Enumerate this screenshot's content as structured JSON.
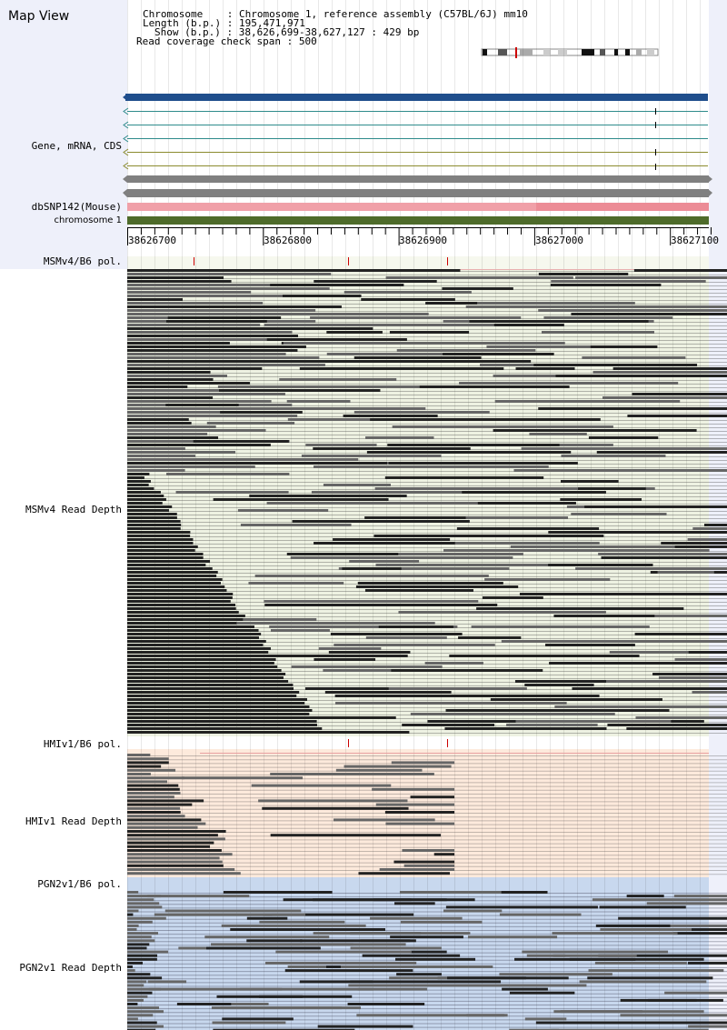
{
  "app": {
    "title": "Map View"
  },
  "info": {
    "chromosome_key": "Chromosome",
    "chromosome_value": "Chromosome 1, reference assembly (C57BL/6J) mm10",
    "length_key": "Length (b.p.)",
    "length_value": "195,471,971",
    "show_key": "Show (b.p.)",
    "show_value": "38,626,699-38,627,127 : 429 bp",
    "read_coverage_key": "Read coverage check span",
    "read_coverage_value": "500"
  },
  "tracks": {
    "gene": "Gene, mRNA, CDS",
    "dbsnp": "dbSNP142(Mouse)",
    "chromosome": "chromosome 1",
    "msm_pol": "MSMv4/B6 pol.",
    "msm_depth": "MSMv4 Read Depth",
    "hmi_pol": "HMIv1/B6 pol.",
    "hmi_depth": "HMIv1 Read Depth",
    "pgn_pol": "PGN2v1/B6 pol.",
    "pgn_depth": "PGN2v1 Read Depth"
  },
  "ruler": {
    "ticks": [
      "38626700",
      "38626800",
      "38626900",
      "38627000",
      "38627100"
    ]
  },
  "colors": {
    "gene_bar": "#1f4e8c",
    "transcript": "#2e8b8b",
    "transcript_olive": "#8b8b2e",
    "cds_gray": "#808080",
    "dbsnp": "#f0a0a8",
    "chromosome_bar": "#4e6b2a",
    "msm_bg": "#eef2e2",
    "hmi_bg": "#fdeadc",
    "pgn_bg": "#c8d8ee",
    "snp_marker": "#cc0000",
    "read_dark": "#222222",
    "read_gray": "#666666"
  }
}
